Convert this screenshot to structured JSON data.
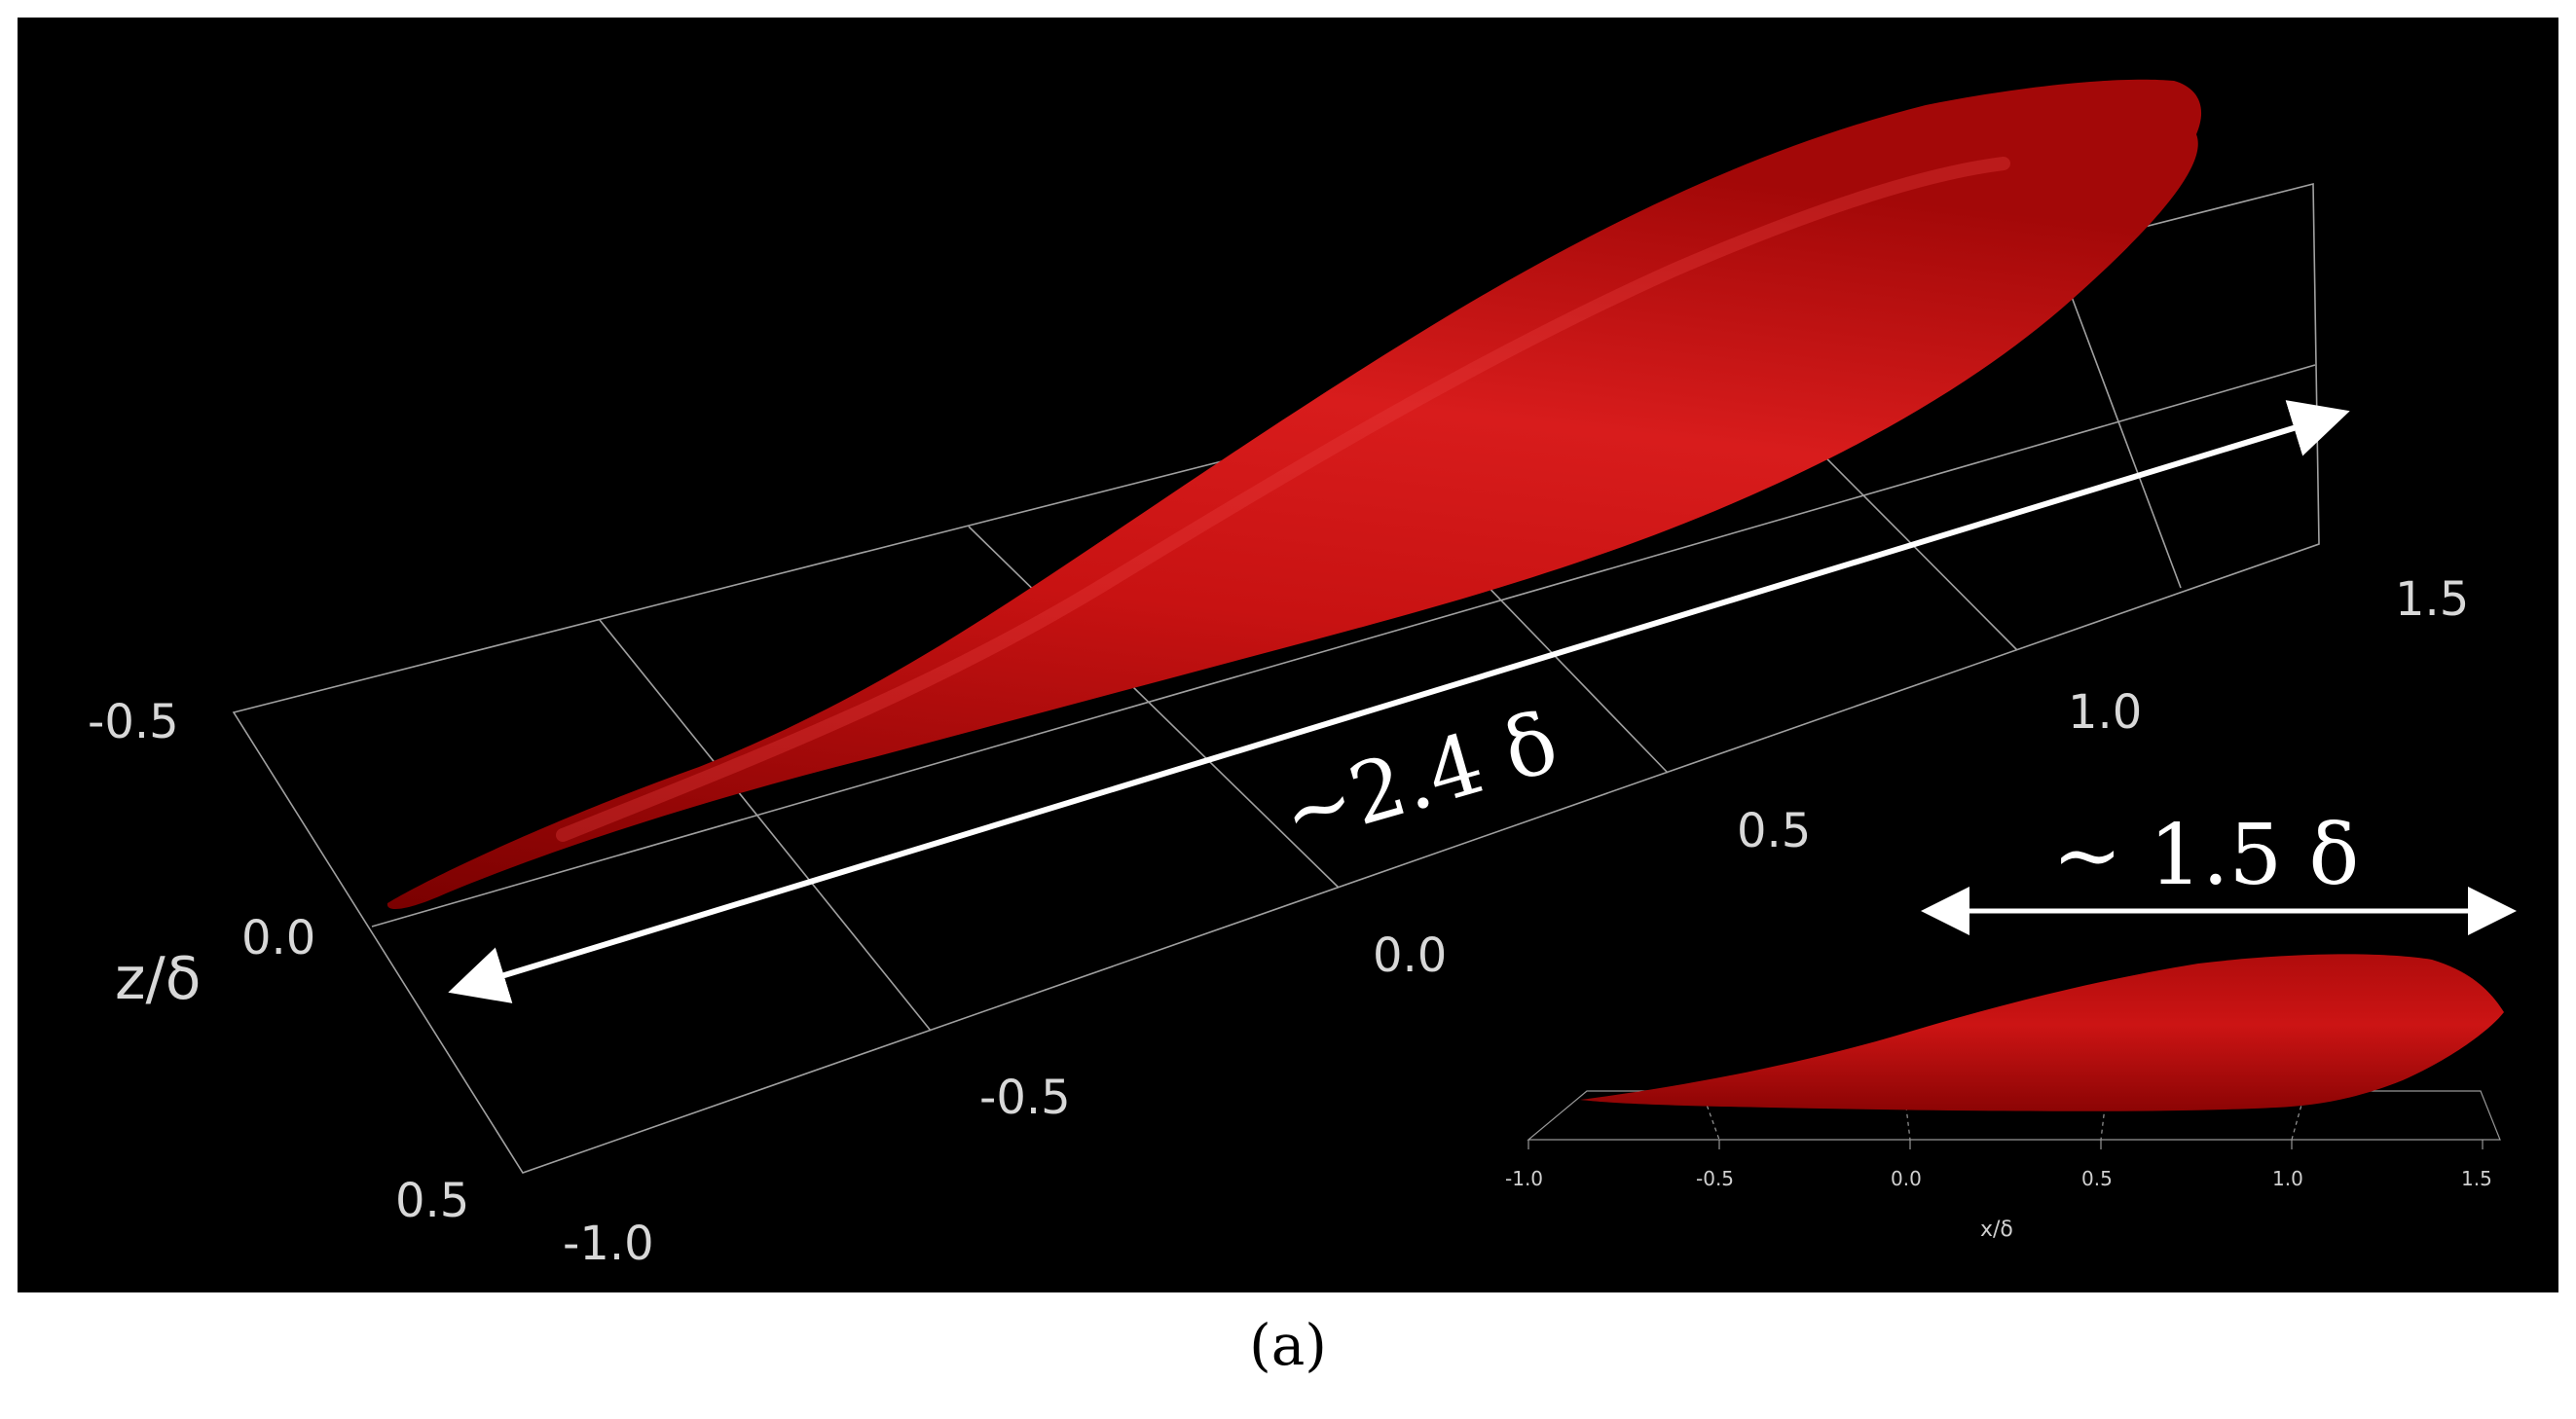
{
  "panel_label": "(a)",
  "main_view": {
    "axis_z": {
      "title": "z/δ",
      "ticks": [
        "-0.5",
        "0.0",
        "0.5"
      ]
    },
    "axis_x": {
      "ticks": [
        "-1.0",
        "-0.5",
        "0.0",
        "0.5",
        "1.0",
        "1.5"
      ]
    },
    "length_annotation": "~2.4 δ"
  },
  "inset_view": {
    "axis_x": {
      "title": "x/δ",
      "ticks": [
        "-1.0",
        "-0.5",
        "0.0",
        "0.5",
        "1.0",
        "1.5"
      ]
    },
    "length_annotation": "~ 1.5 δ"
  },
  "colors": {
    "background": "#000000",
    "structure_red": "#c41010",
    "grid_line": "#bdbdbd",
    "annotation": "#ffffff"
  }
}
